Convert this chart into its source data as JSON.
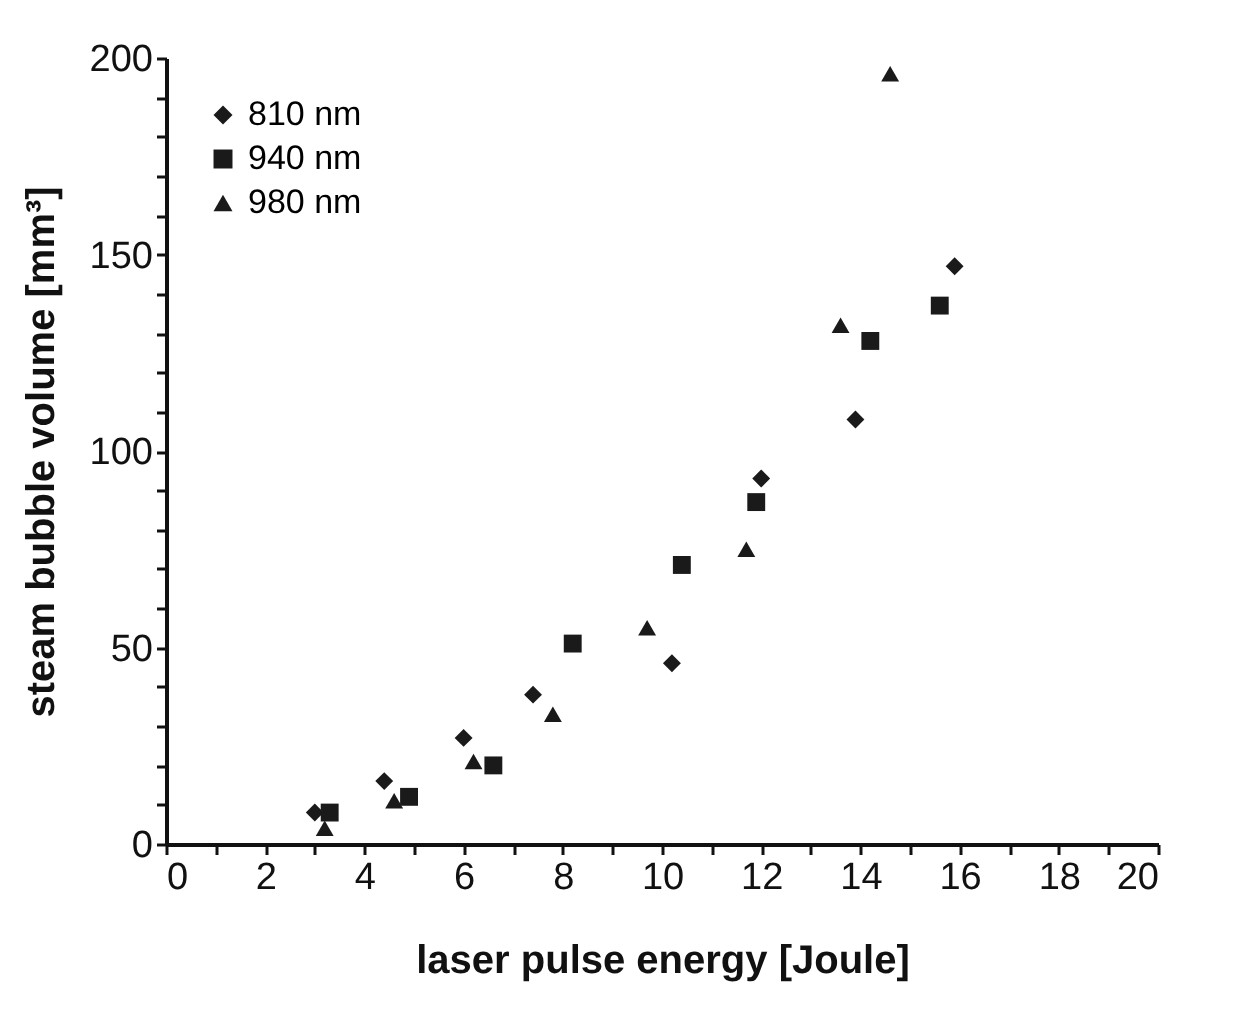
{
  "chart_data": {
    "type": "scatter",
    "xlabel": "laser pulse energy [Joule]",
    "ylabel": "steam bubble volume [mm³]",
    "xlim": [
      0,
      20
    ],
    "xticks": [
      0,
      {
        "value": 1,
        "label": null
      },
      2,
      {
        "value": 3,
        "label": null
      },
      4,
      {
        "value": 5,
        "label": null
      },
      6,
      {
        "value": 7,
        "label": null
      },
      8,
      {
        "value": 9,
        "label": null
      },
      10,
      {
        "value": 11,
        "label": null
      },
      12,
      {
        "value": 13,
        "label": null
      },
      14,
      {
        "value": 15,
        "label": null
      },
      16,
      {
        "value": 17,
        "label": null
      },
      18,
      {
        "value": 19,
        "label": null
      },
      20
    ],
    "ylim": [
      0,
      200
    ],
    "yticks": [
      0,
      {
        "value": 10,
        "label": null
      },
      {
        "value": 20,
        "label": null
      },
      {
        "value": 30,
        "label": null
      },
      {
        "value": 40,
        "label": null
      },
      50,
      {
        "value": 60,
        "label": null
      },
      {
        "value": 70,
        "label": null
      },
      {
        "value": 80,
        "label": null
      },
      {
        "value": 90,
        "label": null
      },
      100,
      {
        "value": 110,
        "label": null
      },
      {
        "value": 120,
        "label": null
      },
      {
        "value": 130,
        "label": null
      },
      {
        "value": 140,
        "label": null
      },
      150,
      {
        "value": 160,
        "label": null
      },
      {
        "value": 170,
        "label": null
      },
      {
        "value": 180,
        "label": null
      },
      {
        "value": 190,
        "label": null
      },
      200
    ],
    "grid": false,
    "legend": "top left",
    "series": [
      {
        "name": "810 nm",
        "color": "#1a1a1a",
        "marker": "diamond",
        "x": [
          3.0,
          4.4,
          6.0,
          7.4,
          10.2,
          12.0,
          13.9,
          15.9
        ],
        "values": [
          8,
          16,
          27,
          38,
          46,
          93,
          108,
          147
        ]
      },
      {
        "name": "940 nm",
        "color": "#1a1a1a",
        "marker": "square",
        "x": [
          3.3,
          4.9,
          6.6,
          8.2,
          10.4,
          11.9,
          14.2,
          15.6
        ],
        "values": [
          8,
          12,
          20,
          51,
          71,
          87,
          128,
          137
        ]
      },
      {
        "name": "980 nm",
        "color": "#1a1a1a",
        "marker": "triangle",
        "x": [
          3.2,
          4.6,
          6.2,
          7.8,
          9.7,
          11.7,
          13.6,
          14.6
        ],
        "values": [
          4,
          11,
          21,
          33,
          55,
          75,
          132,
          196
        ]
      }
    ]
  }
}
